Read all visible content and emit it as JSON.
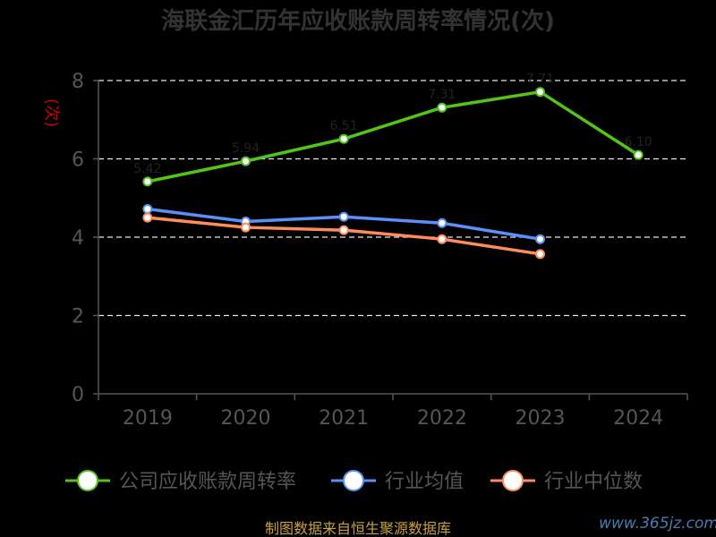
{
  "chart_data": {
    "type": "line",
    "title": "海联金汇历年应收账款周转率情况(次)",
    "ylabel": "(次)",
    "xlabel": "",
    "ylim": [
      0,
      8
    ],
    "yticks": [
      0,
      2,
      4,
      6,
      8
    ],
    "grid": "horizontal-dashed",
    "legend_position": "bottom",
    "categories": [
      "2019",
      "2020",
      "2021",
      "2022",
      "2023",
      "2024"
    ],
    "series": [
      {
        "name": "公司应收账款周转率",
        "color": "#52c41a",
        "values": [
          5.42,
          5.94,
          6.51,
          7.31,
          7.71,
          6.1
        ]
      },
      {
        "name": "行业均值",
        "color": "#5b8ff9",
        "values": [
          4.72,
          4.4,
          4.52,
          4.36,
          3.95,
          null
        ]
      },
      {
        "name": "行业中位数",
        "color": "#ff8c5a",
        "values": [
          4.5,
          4.25,
          4.18,
          3.95,
          3.57,
          null
        ]
      }
    ]
  },
  "source_text": "制图数据来自恒生聚源数据库",
  "watermark": "www.365jz.com"
}
